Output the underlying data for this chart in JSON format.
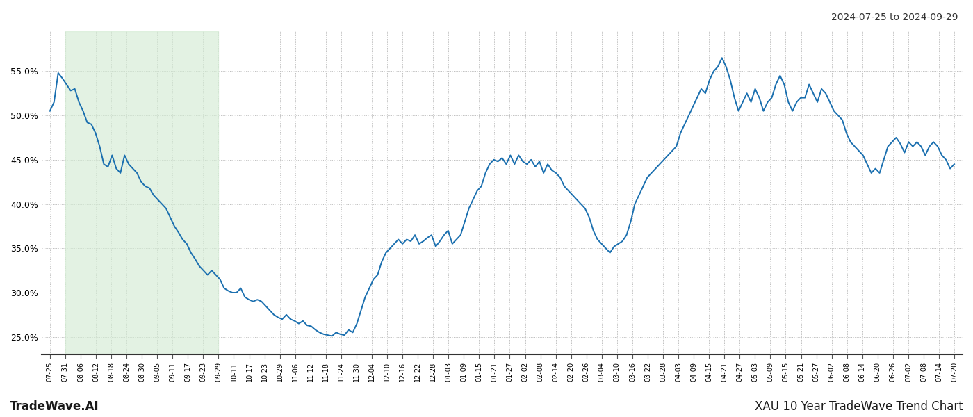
{
  "title_top_right": "2024-07-25 to 2024-09-29",
  "title_bottom_left": "TradeWave.AI",
  "title_bottom_right": "XAU 10 Year TradeWave Trend Chart",
  "line_color": "#1a6faf",
  "line_width": 1.4,
  "shaded_region_color": "#d4ecd4",
  "shaded_region_alpha": 0.65,
  "background_color": "#ffffff",
  "grid_color": "#bbbbbb",
  "ylim": [
    23.0,
    59.5
  ],
  "yticks": [
    25.0,
    30.0,
    35.0,
    40.0,
    45.0,
    50.0,
    55.0
  ],
  "x_labels": [
    "07-25",
    "07-31",
    "08-06",
    "08-12",
    "08-18",
    "08-24",
    "08-30",
    "09-05",
    "09-11",
    "09-17",
    "09-23",
    "09-29",
    "10-11",
    "10-17",
    "10-23",
    "10-29",
    "11-06",
    "11-12",
    "11-18",
    "11-24",
    "11-30",
    "12-04",
    "12-10",
    "12-16",
    "12-22",
    "12-28",
    "01-03",
    "01-09",
    "01-15",
    "01-21",
    "01-27",
    "02-02",
    "02-08",
    "02-14",
    "02-20",
    "02-26",
    "03-04",
    "03-10",
    "03-16",
    "03-22",
    "03-28",
    "04-03",
    "04-09",
    "04-15",
    "04-21",
    "04-27",
    "05-03",
    "05-09",
    "05-15",
    "05-21",
    "05-27",
    "06-02",
    "06-08",
    "06-14",
    "06-20",
    "06-26",
    "07-02",
    "07-08",
    "07-14",
    "07-20"
  ],
  "shaded_start_label": "07-31",
  "shaded_end_label": "09-29",
  "values": [
    50.5,
    51.5,
    54.8,
    54.2,
    53.5,
    52.8,
    53.0,
    51.5,
    50.5,
    49.2,
    49.0,
    48.0,
    46.5,
    44.5,
    44.2,
    45.5,
    44.0,
    43.5,
    45.5,
    44.5,
    44.0,
    43.5,
    42.5,
    42.0,
    41.8,
    41.0,
    40.5,
    40.0,
    39.5,
    38.5,
    37.5,
    36.8,
    36.0,
    35.5,
    34.5,
    33.8,
    33.0,
    32.5,
    32.0,
    32.5,
    32.0,
    31.5,
    30.5,
    30.2,
    30.0,
    30.0,
    30.5,
    29.5,
    29.2,
    29.0,
    29.2,
    29.0,
    28.5,
    28.0,
    27.5,
    27.2,
    27.0,
    27.5,
    27.0,
    26.8,
    26.5,
    26.8,
    26.3,
    26.2,
    25.8,
    25.5,
    25.3,
    25.2,
    25.1,
    25.5,
    25.3,
    25.2,
    25.8,
    25.5,
    26.5,
    28.0,
    29.5,
    30.5,
    31.5,
    32.0,
    33.5,
    34.5,
    35.0,
    35.5,
    36.0,
    35.5,
    36.0,
    35.8,
    36.5,
    35.5,
    35.8,
    36.2,
    36.5,
    35.2,
    35.8,
    36.5,
    37.0,
    35.5,
    36.0,
    36.5,
    38.0,
    39.5,
    40.5,
    41.5,
    42.0,
    43.5,
    44.5,
    45.0,
    44.8,
    45.2,
    44.5,
    45.5,
    44.5,
    45.5,
    44.8,
    44.5,
    45.0,
    44.2,
    44.8,
    43.5,
    44.5,
    43.8,
    43.5,
    43.0,
    42.0,
    41.5,
    41.0,
    40.5,
    40.0,
    39.5,
    38.5,
    37.0,
    36.0,
    35.5,
    35.0,
    34.5,
    35.2,
    35.5,
    35.8,
    36.5,
    38.0,
    40.0,
    41.0,
    42.0,
    43.0,
    43.5,
    44.0,
    44.5,
    45.0,
    45.5,
    46.0,
    46.5,
    48.0,
    49.0,
    50.0,
    51.0,
    52.0,
    53.0,
    52.5,
    54.0,
    55.0,
    55.5,
    56.5,
    55.5,
    54.0,
    52.0,
    50.5,
    51.5,
    52.5,
    51.5,
    53.0,
    52.0,
    50.5,
    51.5,
    52.0,
    53.5,
    54.5,
    53.5,
    51.5,
    50.5,
    51.5,
    52.0,
    52.0,
    53.5,
    52.5,
    51.5,
    53.0,
    52.5,
    51.5,
    50.5,
    50.0,
    49.5,
    48.0,
    47.0,
    46.5,
    46.0,
    45.5,
    44.5,
    43.5,
    44.0,
    43.5,
    45.0,
    46.5,
    47.0,
    47.5,
    46.8,
    45.8,
    47.0,
    46.5,
    47.0,
    46.5,
    45.5,
    46.5,
    47.0,
    46.5,
    45.5,
    45.0,
    44.0,
    44.5
  ]
}
